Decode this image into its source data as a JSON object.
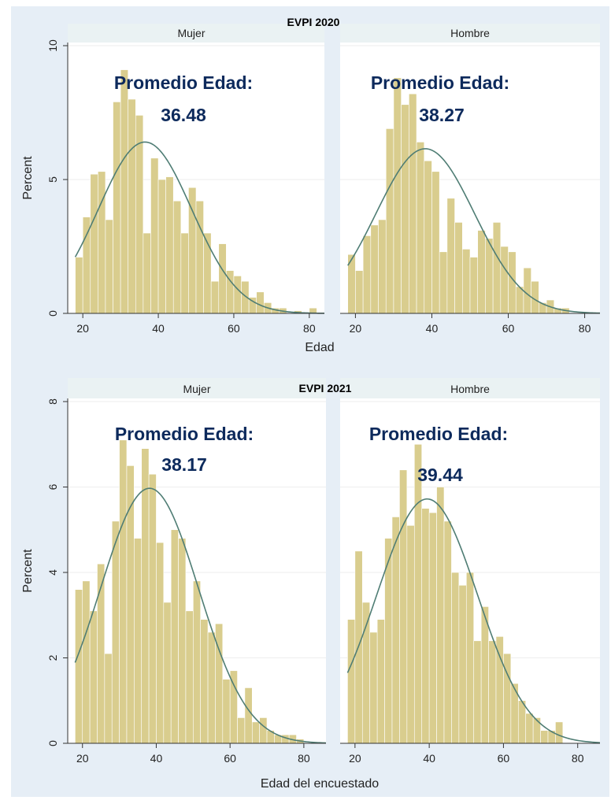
{
  "chart_data": [
    {
      "type": "bar",
      "title": "EVPI 2020",
      "ylabel": "Percent",
      "xlabel": "Edad",
      "xlim": [
        16,
        84
      ],
      "ylim": [
        0,
        10
      ],
      "yticks": [
        0,
        5,
        10
      ],
      "xticks": [
        20,
        40,
        60,
        80
      ],
      "bin_width": 2,
      "panels": [
        {
          "strip": "Mujer",
          "annotation_line1": "Promedio Edad:",
          "annotation_line2": "36.48",
          "mean": 36.48,
          "sd": 12.4,
          "bin_starts": [
            18,
            20,
            22,
            24,
            26,
            28,
            30,
            32,
            34,
            36,
            38,
            40,
            42,
            44,
            46,
            48,
            50,
            52,
            54,
            56,
            58,
            60,
            62,
            64,
            66,
            68,
            70,
            72,
            74,
            76,
            78,
            80
          ],
          "values": [
            2.1,
            3.6,
            5.2,
            5.3,
            3.5,
            7.9,
            9.1,
            8.0,
            7.4,
            3.0,
            5.8,
            5.0,
            5.1,
            4.2,
            3.0,
            4.7,
            4.2,
            3.0,
            1.2,
            2.6,
            1.6,
            1.4,
            1.2,
            0.6,
            0.8,
            0.4,
            0.2,
            0.2,
            0.0,
            0.1,
            0.0,
            0.2
          ],
          "normal_curve_peak": 6.4
        },
        {
          "strip": "Hombre",
          "annotation_line1": "Promedio Edad:",
          "annotation_line2": "38.27",
          "mean": 38.27,
          "sd": 12.9,
          "bin_starts": [
            18,
            20,
            22,
            24,
            26,
            28,
            30,
            32,
            34,
            36,
            38,
            40,
            42,
            44,
            46,
            48,
            50,
            52,
            54,
            56,
            58,
            60,
            62,
            64,
            66,
            68,
            70,
            72,
            74
          ],
          "values": [
            2.2,
            1.6,
            2.9,
            3.3,
            3.5,
            6.9,
            8.8,
            7.8,
            8.2,
            6.4,
            5.7,
            5.3,
            2.3,
            4.3,
            3.4,
            2.4,
            2.1,
            3.1,
            2.8,
            3.4,
            2.5,
            2.3,
            1.0,
            1.7,
            1.2,
            0.4,
            0.5,
            0.2,
            0.2
          ],
          "normal_curve_peak": 6.15
        }
      ]
    },
    {
      "type": "bar",
      "title": "EVPI 2021",
      "ylabel": "Percent",
      "xlabel": "Edad del encuestado",
      "xlim": [
        16,
        86
      ],
      "ylim": [
        0,
        8
      ],
      "yticks": [
        0,
        2,
        4,
        6,
        8
      ],
      "xticks": [
        20,
        40,
        60,
        80
      ],
      "bin_width": 2,
      "panels": [
        {
          "strip": "Mujer",
          "annotation_line1": "Promedio Edad:",
          "annotation_line2": "38.17",
          "mean": 38.17,
          "sd": 13.3,
          "bin_starts": [
            18,
            20,
            22,
            24,
            26,
            28,
            30,
            32,
            34,
            36,
            38,
            40,
            42,
            44,
            46,
            48,
            50,
            52,
            54,
            56,
            58,
            60,
            62,
            64,
            66,
            68,
            70,
            72,
            74,
            76,
            78,
            80,
            82
          ],
          "values": [
            3.6,
            3.8,
            3.1,
            4.2,
            2.1,
            5.2,
            7.1,
            6.5,
            4.8,
            6.9,
            6.3,
            4.7,
            3.3,
            5.0,
            4.8,
            3.1,
            3.8,
            2.9,
            2.6,
            2.8,
            1.5,
            1.7,
            0.6,
            1.3,
            0.5,
            0.6,
            0.3,
            0.2,
            0.2,
            0.2,
            0.1,
            0.0,
            0.0
          ],
          "normal_curve_peak": 5.97
        },
        {
          "strip": "Hombre",
          "annotation_line1": "Promedio Edad:",
          "annotation_line2": "39.44",
          "mean": 39.44,
          "sd": 13.6,
          "bin_starts": [
            18,
            20,
            22,
            24,
            26,
            28,
            30,
            32,
            34,
            36,
            38,
            40,
            42,
            44,
            46,
            48,
            50,
            52,
            54,
            56,
            58,
            60,
            62,
            64,
            66,
            68,
            70,
            72,
            74
          ],
          "values": [
            2.9,
            4.5,
            3.3,
            2.6,
            2.9,
            4.8,
            5.3,
            6.4,
            5.1,
            7.0,
            5.5,
            5.4,
            6.0,
            5.2,
            4.0,
            3.7,
            4.0,
            2.4,
            3.2,
            2.4,
            2.5,
            2.1,
            1.4,
            1.0,
            0.7,
            0.6,
            0.3,
            0.3,
            0.5
          ],
          "normal_curve_peak": 5.72
        }
      ]
    }
  ],
  "colors": {
    "background": "#e6eef6",
    "panel": "#ffffff",
    "strip": "#eaf2f3",
    "bar_fill": "#d9cd8e",
    "bar_stroke": "#ffffff",
    "curve": "#4f7d74",
    "grid": "#eeeeee",
    "annotation": "#0d2a5c",
    "axis_text": "#222222"
  }
}
